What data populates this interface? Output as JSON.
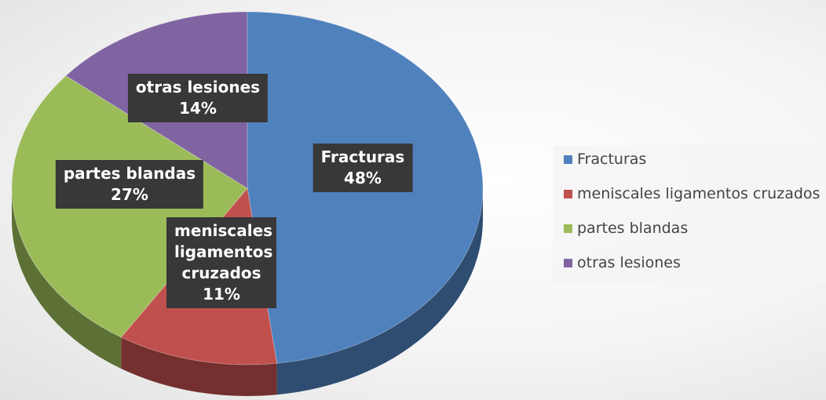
{
  "chart_data": {
    "type": "pie",
    "categories": [
      "Fracturas",
      "meniscales ligamentos cruzados",
      "partes blandas",
      "otras lesiones"
    ],
    "values": [
      48,
      11,
      27,
      14
    ],
    "value_labels": [
      "48%",
      "11%",
      "27%",
      "14%"
    ],
    "colors": [
      "#4f81bd",
      "#c0504d",
      "#9bbb59",
      "#8064a2"
    ],
    "legend": "right"
  }
}
